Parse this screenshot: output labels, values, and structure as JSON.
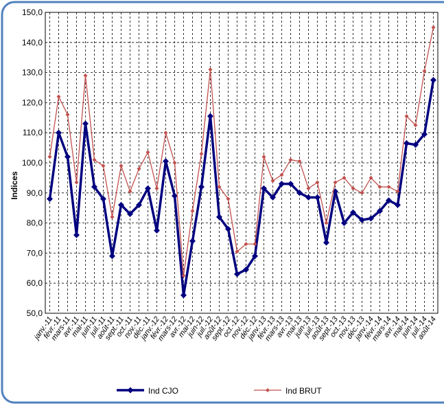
{
  "chart_data": {
    "type": "line",
    "y_label": "Indices",
    "categories": [
      "janv.-11",
      "févr.-11",
      "mars-11",
      "avr.-11",
      "mai-11",
      "juin-11",
      "juil.-11",
      "août-11",
      "sept.-11",
      "oct.-11",
      "nov.-11",
      "déc.-11",
      "janv.-12",
      "févr.-12",
      "mars-12",
      "avr.-12",
      "mai-12",
      "juin-12",
      "juil.-12",
      "août-12",
      "sept.-12",
      "oct.-12",
      "nov.-12",
      "déc.-12",
      "janv.-13",
      "févr.-13",
      "mars-13",
      "avr.-13",
      "mai-13",
      "juin-13",
      "juil.-13",
      "août-13",
      "sept.-13",
      "oct.-13",
      "nov.-13",
      "déc.-13",
      "janv.-14",
      "févr.-14",
      "mars-14",
      "avr.-14",
      "mai-14",
      "juin-14",
      "juil.-14",
      "août-14"
    ],
    "series": [
      {
        "name": "Ind CJO",
        "color": "#00007f",
        "values": [
          88,
          110,
          102,
          76,
          113,
          92,
          88,
          69,
          86,
          83,
          86,
          91.5,
          77.5,
          100.5,
          89,
          56,
          74,
          92,
          115.5,
          82,
          78,
          63,
          64.5,
          69,
          91.5,
          88.5,
          93,
          93,
          90,
          88.5,
          88.5,
          73.5,
          90.5,
          80,
          83.5,
          81,
          81.5,
          84,
          87.5,
          86,
          106.5,
          106,
          109.5,
          127.5
        ]
      },
      {
        "name": "Ind BRUT",
        "color": "#c0504d",
        "values": [
          102,
          122,
          116,
          93.5,
          129,
          101,
          99,
          82,
          99,
          90.5,
          98,
          103.5,
          91.5,
          110,
          100,
          62.5,
          84,
          103,
          131,
          92,
          88,
          70.5,
          73,
          73,
          102,
          94,
          96,
          101,
          100.5,
          91.5,
          93.5,
          80,
          93.5,
          95,
          91.5,
          90,
          95,
          92,
          92,
          90.5,
          115.5,
          112.5,
          130.5,
          145
        ]
      }
    ],
    "ylim": [
      50,
      150
    ],
    "yticks": [
      {
        "value": 50,
        "label": "50,0"
      },
      {
        "value": 60,
        "label": "60,0"
      },
      {
        "value": 70,
        "label": "70,0"
      },
      {
        "value": 80,
        "label": "80,0"
      },
      {
        "value": 90,
        "label": "90,0"
      },
      {
        "value": 100,
        "label": "100,0"
      },
      {
        "value": 110,
        "label": "110,0"
      },
      {
        "value": 120,
        "label": "120,0"
      },
      {
        "value": 130,
        "label": "130,0"
      },
      {
        "value": 140,
        "label": "140,0"
      },
      {
        "value": 150,
        "label": "150,0"
      }
    ],
    "grid": true
  }
}
